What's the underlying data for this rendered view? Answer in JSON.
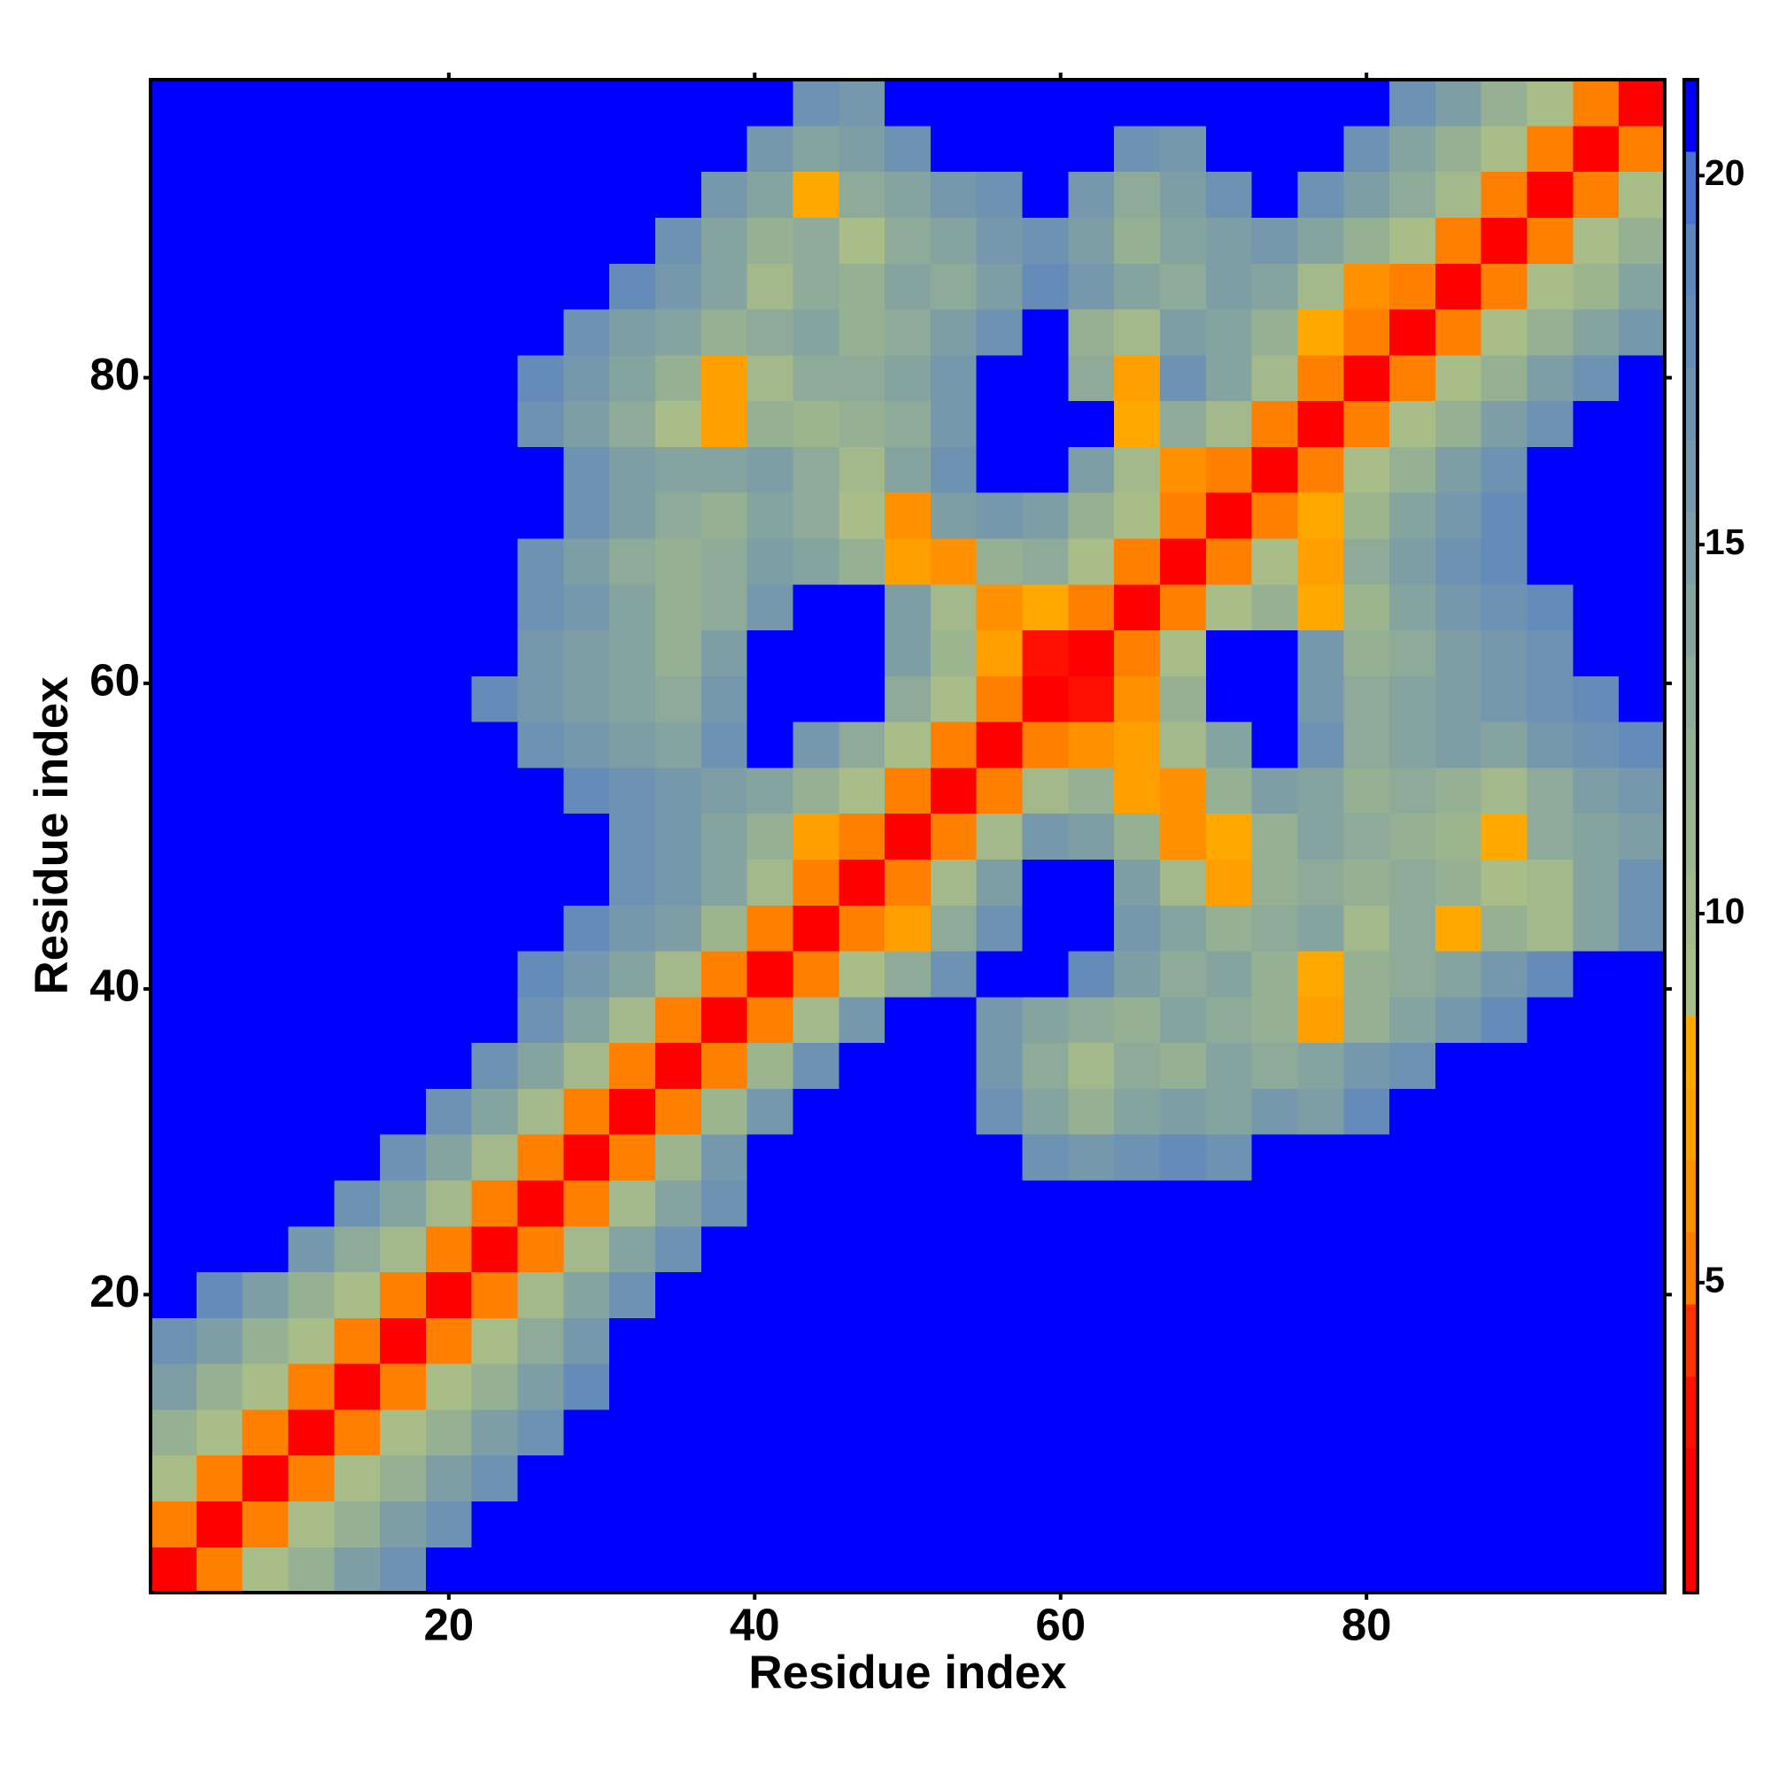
{
  "chart_data": {
    "type": "heatmap",
    "xlabel": "Residue index",
    "ylabel": "Residue index",
    "xlim": [
      0.5,
      99.5
    ],
    "ylim": [
      0.5,
      99.5
    ],
    "xticks": [
      20,
      40,
      60,
      80
    ],
    "yticks": [
      20,
      40,
      60,
      80
    ],
    "clim": [
      0.8,
      21.3
    ],
    "cticks": [
      5,
      10,
      15,
      20
    ],
    "colormap": [
      "#ff0000",
      "#ff0000",
      "#ff1000",
      "#ff3300",
      "#ff8000",
      "#ff9000",
      "#ffa000",
      "#ffa800",
      "#a9bd88",
      "#a3b98c",
      "#9db58f",
      "#96b093",
      "#8eaa99",
      "#86a49f",
      "#7e9ea5",
      "#7598ac",
      "#6d92b2",
      "#658cb8",
      "#5d86be",
      "#4a72d0",
      "#0000ff"
    ],
    "x": [
      2,
      5,
      8,
      11,
      14,
      17,
      20,
      23,
      26,
      29,
      32,
      35,
      38,
      41,
      44,
      47,
      50,
      53,
      56,
      59,
      62,
      65,
      68,
      71,
      74,
      77,
      80,
      83,
      86,
      89,
      92,
      95,
      98
    ],
    "y": [
      2,
      5,
      8,
      11,
      14,
      17,
      20,
      23,
      26,
      29,
      32,
      35,
      38,
      41,
      44,
      47,
      50,
      53,
      56,
      59,
      62,
      65,
      68,
      71,
      74,
      77,
      80,
      83,
      86,
      89,
      92,
      95,
      98
    ],
    "z": [
      [
        1,
        5,
        9,
        12,
        15,
        17,
        21,
        21,
        21,
        21,
        21,
        21,
        21,
        21,
        21,
        21,
        21,
        21,
        21,
        21,
        21,
        21,
        21,
        21,
        21,
        21,
        21,
        21,
        21,
        21,
        21,
        21,
        21
      ],
      [
        5,
        1,
        5,
        9,
        12,
        15,
        17,
        21,
        21,
        21,
        21,
        21,
        21,
        21,
        21,
        21,
        21,
        21,
        21,
        21,
        21,
        21,
        21,
        21,
        21,
        21,
        21,
        21,
        21,
        21,
        21,
        21,
        21
      ],
      [
        9,
        5,
        1,
        5,
        9,
        12,
        15,
        17,
        21,
        21,
        21,
        21,
        21,
        21,
        21,
        21,
        21,
        21,
        21,
        21,
        21,
        21,
        21,
        21,
        21,
        21,
        21,
        21,
        21,
        21,
        21,
        21,
        21
      ],
      [
        12,
        9,
        5,
        1,
        5,
        9,
        12,
        15,
        17,
        21,
        21,
        21,
        21,
        21,
        21,
        21,
        21,
        21,
        21,
        21,
        21,
        21,
        21,
        21,
        21,
        21,
        21,
        21,
        21,
        21,
        21,
        21,
        21
      ],
      [
        15,
        12,
        9,
        5,
        1,
        5,
        9,
        12,
        15,
        18,
        21,
        21,
        21,
        21,
        21,
        21,
        21,
        21,
        21,
        21,
        21,
        21,
        21,
        21,
        21,
        21,
        21,
        21,
        21,
        21,
        21,
        21,
        21
      ],
      [
        17,
        15,
        12,
        9,
        5,
        1,
        5,
        9,
        13,
        16,
        21,
        21,
        21,
        21,
        21,
        21,
        21,
        21,
        21,
        21,
        21,
        21,
        21,
        21,
        21,
        21,
        21,
        21,
        21,
        21,
        21,
        21,
        21
      ],
      [
        21,
        18,
        15,
        12,
        9,
        5,
        1,
        5,
        10,
        14,
        17,
        21,
        21,
        21,
        21,
        21,
        21,
        21,
        21,
        21,
        21,
        21,
        21,
        21,
        21,
        21,
        21,
        21,
        21,
        21,
        21,
        21,
        21
      ],
      [
        21,
        21,
        21,
        16,
        13,
        10,
        5,
        1,
        5,
        10,
        14,
        17,
        21,
        21,
        21,
        21,
        21,
        21,
        21,
        21,
        21,
        21,
        21,
        21,
        21,
        21,
        21,
        21,
        21,
        21,
        21,
        21,
        21
      ],
      [
        21,
        21,
        21,
        21,
        17,
        14,
        10,
        5,
        1,
        5,
        10,
        14,
        17,
        21,
        21,
        21,
        21,
        21,
        21,
        21,
        21,
        21,
        21,
        21,
        21,
        21,
        21,
        21,
        21,
        21,
        21,
        21,
        21
      ],
      [
        21,
        21,
        21,
        21,
        21,
        17,
        14,
        10,
        5,
        1,
        5,
        11,
        16,
        21,
        21,
        21,
        21,
        21,
        21,
        17,
        16,
        17,
        18,
        17,
        21,
        21,
        21,
        21,
        21,
        21,
        21,
        21,
        21
      ],
      [
        21,
        21,
        21,
        21,
        21,
        21,
        17,
        14,
        10,
        5,
        1,
        5,
        11,
        16,
        21,
        21,
        21,
        21,
        17,
        14,
        12,
        14,
        15,
        14,
        16,
        15,
        18,
        21,
        21,
        21,
        21,
        21,
        21
      ],
      [
        21,
        21,
        21,
        21,
        21,
        21,
        21,
        17,
        14,
        10,
        5,
        1,
        5,
        11,
        17,
        21,
        21,
        21,
        16,
        13,
        10,
        13,
        12,
        14,
        13,
        14,
        16,
        17,
        21,
        21,
        21,
        21,
        21
      ],
      [
        21,
        21,
        21,
        21,
        21,
        21,
        21,
        21,
        17,
        14,
        10,
        5,
        1,
        5,
        10,
        16,
        21,
        21,
        16,
        14,
        13,
        12,
        14,
        13,
        12,
        7,
        12,
        14,
        16,
        18,
        21,
        21,
        21
      ],
      [
        21,
        21,
        21,
        21,
        21,
        21,
        21,
        21,
        18,
        16,
        14,
        10,
        5,
        1,
        5,
        9,
        13,
        17,
        21,
        21,
        18,
        15,
        13,
        14,
        12,
        8,
        12,
        13,
        14,
        16,
        18,
        21,
        21
      ],
      [
        21,
        21,
        21,
        21,
        21,
        21,
        21,
        21,
        21,
        18,
        16,
        15,
        11,
        5,
        1,
        5,
        7,
        13,
        17,
        21,
        21,
        16,
        14,
        12,
        13,
        14,
        10,
        13,
        8,
        12,
        10,
        14,
        17
      ],
      [
        21,
        21,
        21,
        21,
        21,
        21,
        21,
        21,
        21,
        21,
        17,
        16,
        14,
        10,
        5,
        1,
        5,
        10,
        15,
        21,
        21,
        15,
        10,
        7,
        12,
        13,
        12,
        13,
        12,
        9,
        10,
        14,
        17
      ],
      [
        21,
        21,
        21,
        21,
        21,
        21,
        21,
        21,
        21,
        21,
        17,
        16,
        14,
        12,
        7,
        5,
        1,
        5,
        10,
        16,
        15,
        12,
        6,
        8,
        12,
        14,
        13,
        12,
        11,
        8,
        13,
        14,
        15
      ],
      [
        21,
        21,
        21,
        21,
        21,
        21,
        21,
        21,
        21,
        18,
        17,
        16,
        15,
        14,
        12,
        9,
        5,
        1,
        5,
        10,
        12,
        7,
        6,
        12,
        15,
        14,
        12,
        13,
        12,
        10,
        13,
        15,
        16
      ],
      [
        21,
        21,
        21,
        21,
        21,
        21,
        21,
        21,
        17,
        16,
        15,
        14,
        17,
        21,
        16,
        13,
        9,
        5,
        1,
        5,
        6,
        7,
        10,
        14,
        21,
        17,
        13,
        14,
        15,
        14,
        16,
        17,
        18
      ],
      [
        21,
        21,
        21,
        21,
        21,
        21,
        21,
        18,
        16,
        15,
        14,
        13,
        16,
        21,
        21,
        21,
        13,
        9,
        5,
        1,
        3,
        6,
        12,
        21,
        21,
        16,
        13,
        14,
        15,
        16,
        17,
        18,
        21
      ],
      [
        21,
        21,
        21,
        21,
        21,
        21,
        21,
        21,
        16,
        15,
        14,
        12,
        15,
        21,
        21,
        21,
        15,
        11,
        7,
        3,
        1,
        5,
        9,
        21,
        21,
        16,
        12,
        13,
        15,
        16,
        17,
        21,
        21
      ],
      [
        21,
        21,
        21,
        21,
        21,
        21,
        21,
        21,
        17,
        16,
        14,
        12,
        13,
        16,
        21,
        21,
        15,
        10,
        6,
        8,
        5,
        1,
        5,
        9,
        12,
        8,
        11,
        14,
        16,
        17,
        18,
        21,
        21
      ],
      [
        21,
        21,
        21,
        21,
        21,
        21,
        21,
        21,
        17,
        15,
        13,
        12,
        13,
        15,
        14,
        12,
        7,
        6,
        12,
        13,
        9,
        5,
        1,
        5,
        9,
        7,
        13,
        15,
        17,
        18,
        21,
        21,
        21
      ],
      [
        21,
        21,
        21,
        21,
        21,
        21,
        21,
        21,
        21,
        17,
        15,
        13,
        12,
        14,
        13,
        9,
        6,
        15,
        16,
        15,
        12,
        9,
        5,
        1,
        5,
        8,
        11,
        14,
        16,
        18,
        21,
        21,
        21
      ],
      [
        21,
        21,
        21,
        21,
        21,
        21,
        21,
        21,
        21,
        17,
        15,
        14,
        14,
        15,
        13,
        10,
        14,
        17,
        21,
        21,
        15,
        10,
        6,
        5,
        1,
        5,
        9,
        12,
        15,
        17,
        21,
        21,
        21
      ],
      [
        21,
        21,
        21,
        21,
        21,
        21,
        21,
        21,
        17,
        15,
        13,
        9,
        7,
        12,
        11,
        12,
        13,
        16,
        21,
        21,
        21,
        8,
        13,
        10,
        5,
        1,
        5,
        9,
        12,
        15,
        17,
        21,
        21
      ],
      [
        21,
        21,
        21,
        21,
        21,
        21,
        21,
        21,
        18,
        16,
        14,
        12,
        7,
        10,
        13,
        13,
        14,
        16,
        21,
        21,
        13,
        7,
        17,
        14,
        10,
        5,
        1,
        5,
        9,
        12,
        15,
        17,
        21
      ],
      [
        21,
        21,
        21,
        21,
        21,
        21,
        21,
        21,
        21,
        17,
        15,
        14,
        12,
        13,
        14,
        12,
        13,
        15,
        17,
        21,
        12,
        10,
        15,
        14,
        12,
        8,
        5,
        1,
        5,
        9,
        12,
        14,
        16
      ],
      [
        21,
        21,
        21,
        21,
        21,
        21,
        21,
        21,
        21,
        21,
        18,
        16,
        14,
        10,
        13,
        12,
        14,
        13,
        15,
        18,
        16,
        14,
        13,
        15,
        14,
        10,
        6,
        5,
        1,
        5,
        9,
        11,
        14
      ],
      [
        21,
        21,
        21,
        21,
        21,
        21,
        21,
        21,
        21,
        21,
        21,
        17,
        14,
        12,
        13,
        9,
        13,
        14,
        16,
        17,
        15,
        12,
        14,
        15,
        16,
        14,
        12,
        9,
        5,
        1,
        5,
        9,
        12
      ],
      [
        21,
        21,
        21,
        21,
        21,
        21,
        21,
        21,
        21,
        21,
        21,
        21,
        16,
        14,
        8,
        13,
        14,
        16,
        17,
        21,
        16,
        13,
        15,
        17,
        21,
        17,
        15,
        13,
        10,
        5,
        1,
        5,
        9
      ],
      [
        21,
        21,
        21,
        21,
        21,
        21,
        21,
        21,
        21,
        21,
        21,
        21,
        21,
        16,
        14,
        15,
        17,
        21,
        21,
        21,
        21,
        17,
        16,
        21,
        21,
        21,
        17,
        14,
        12,
        9,
        5,
        1,
        5
      ],
      [
        21,
        21,
        21,
        21,
        21,
        21,
        21,
        21,
        21,
        21,
        21,
        21,
        21,
        21,
        17,
        16,
        21,
        21,
        21,
        21,
        21,
        21,
        21,
        21,
        21,
        21,
        21,
        17,
        15,
        12,
        9,
        5,
        1
      ]
    ]
  }
}
